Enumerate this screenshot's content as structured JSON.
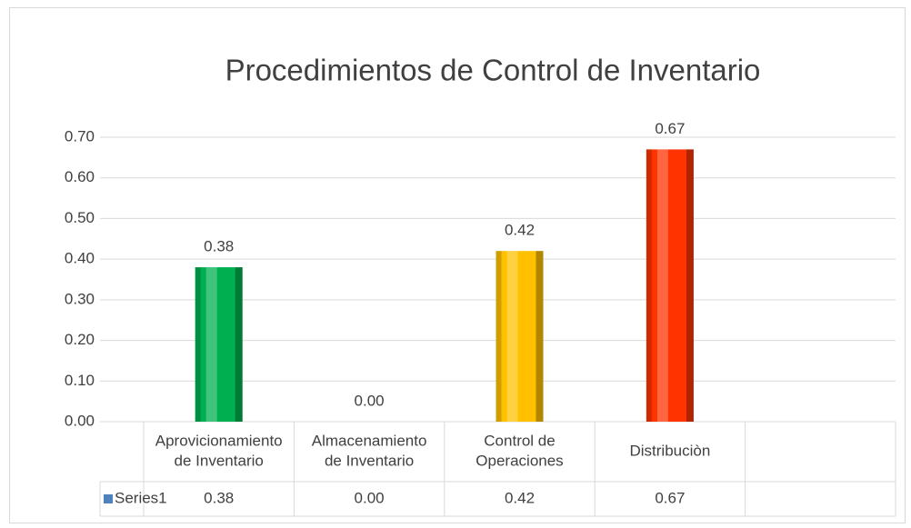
{
  "chart_data": {
    "type": "bar",
    "title": "Procedimientos de Control de Inventario",
    "categories": [
      [
        "Aprovicionamiento",
        "de Inventario"
      ],
      [
        "Almacenamiento",
        "de Inventario"
      ],
      [
        "Control de",
        "Operaciones"
      ],
      [
        "Distribuciòn"
      ],
      null
    ],
    "series": [
      {
        "name": "Series1",
        "color": "#4f81bd",
        "colors": [
          "#00b050",
          "#7f7f7f",
          "#ffc000",
          "#ff3300",
          null
        ],
        "values": [
          0.38,
          0,
          0.42,
          0.67,
          null
        ],
        "value_labels": [
          "0.38",
          "0.00",
          "0.42",
          "0.67",
          null
        ]
      }
    ],
    "ylim": [
      0,
      0.7
    ],
    "yticks": [
      {
        "value": 0,
        "label": "0.00"
      },
      {
        "value": 0.1,
        "label": "0.10"
      },
      {
        "value": 0.2,
        "label": "0.20"
      },
      {
        "value": 0.3,
        "label": "0.30"
      },
      {
        "value": 0.4,
        "label": "0.40"
      },
      {
        "value": 0.5,
        "label": "0.50"
      },
      {
        "value": 0.6,
        "label": "0.60"
      },
      {
        "value": 0.7,
        "label": "0.70"
      }
    ],
    "grid": true,
    "data_table": true
  }
}
